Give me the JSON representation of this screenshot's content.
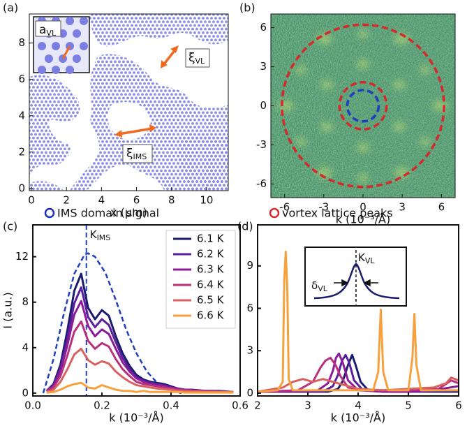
{
  "chart_data": [
    {
      "type": "image",
      "panel": "(a)",
      "xlabel": "x (μm)",
      "xlim": [
        -0.12,
        11.24
      ],
      "ylim": [
        -0.12,
        9.6
      ],
      "xticks": [
        0,
        2,
        4,
        6,
        8,
        10
      ],
      "yticks": [
        0,
        2,
        4,
        6,
        8
      ],
      "annotations": [
        {
          "text": "a",
          "sub": "VL"
        },
        {
          "text": "ξ",
          "sub": "VL"
        },
        {
          "text": "ξ",
          "sub": "IMS"
        }
      ]
    },
    {
      "type": "heatmap",
      "panel": "(b)",
      "xlabel": "k (10⁻³/Å)",
      "xlim": [
        -7.05,
        7.05
      ],
      "ylim": [
        -7.05,
        7.05
      ],
      "xticks": [
        -6,
        -3,
        0,
        3,
        6
      ],
      "yticks": [
        -6,
        -3,
        0,
        3,
        6
      ],
      "circles": [
        {
          "r": 6.2,
          "color": "#d42a2a"
        },
        {
          "r": 1.8,
          "color": "#d42a2a"
        },
        {
          "r": 1.2,
          "color": "#1f3fbf"
        }
      ]
    },
    {
      "type": "line",
      "panel": "(c)",
      "title": "IMS domain signal",
      "title_marker_color": "#1f2fbf",
      "xlabel": "k (10⁻³/Å)",
      "ylabel": "I (a.u.)",
      "xlim": [
        0,
        0.6
      ],
      "ylim": [
        -0.25,
        14.8
      ],
      "xticks": [
        {
          "value": 0,
          "label": "0.0"
        },
        0.2,
        0.4,
        0.6
      ],
      "yticks": [
        0,
        4,
        8,
        12
      ],
      "legend": "upper right",
      "x": [
        0.04,
        0.06,
        0.08,
        0.1,
        0.12,
        0.14,
        0.16,
        0.18,
        0.2,
        0.22,
        0.24,
        0.26,
        0.28,
        0.3,
        0.32,
        0.34,
        0.36,
        0.38,
        0.4,
        0.42,
        0.44,
        0.46,
        0.48,
        0.5,
        0.52,
        0.54,
        0.56,
        0.58
      ],
      "series": [
        {
          "name": "6.1 K",
          "color": "#1b1b6e",
          "values": [
            0.2,
            0.8,
            2.5,
            5.5,
            9.0,
            10.5,
            7.5,
            6.5,
            7.3,
            6.8,
            5.0,
            3.5,
            2.4,
            1.6,
            1.2,
            1.0,
            0.9,
            0.8,
            0.6,
            0.4,
            0.3,
            0.3,
            0.25,
            0.2,
            0.2,
            0.2,
            0.15,
            0.1
          ]
        },
        {
          "name": "6.2 K",
          "color": "#5a1f9e",
          "values": [
            0.2,
            0.7,
            2.2,
            4.8,
            7.9,
            9.3,
            6.7,
            5.8,
            6.5,
            6.0,
            4.5,
            3.1,
            2.1,
            1.4,
            1.1,
            0.9,
            0.8,
            0.7,
            0.5,
            0.4,
            0.3,
            0.3,
            0.2,
            0.2,
            0.2,
            0.15,
            0.1,
            0.1
          ]
        },
        {
          "name": "6.3 K",
          "color": "#8c1b9a",
          "values": [
            0.2,
            0.6,
            1.9,
            4.2,
            6.9,
            8.1,
            5.9,
            5.0,
            5.6,
            5.2,
            3.9,
            2.7,
            1.9,
            1.3,
            1.0,
            0.8,
            0.7,
            0.6,
            0.5,
            0.35,
            0.3,
            0.25,
            0.2,
            0.2,
            0.15,
            0.15,
            0.1,
            0.1
          ]
        },
        {
          "name": "6.4 K",
          "color": "#b9307f",
          "values": [
            0.15,
            0.5,
            1.5,
            3.3,
            5.4,
            6.3,
            4.6,
            3.9,
            4.4,
            4.1,
            3.0,
            2.1,
            1.5,
            1.0,
            0.8,
            0.7,
            0.6,
            0.5,
            0.4,
            0.3,
            0.25,
            0.2,
            0.2,
            0.15,
            0.15,
            0.1,
            0.1,
            0.1
          ]
        },
        {
          "name": "6.5 K",
          "color": "#da6060",
          "values": [
            0.1,
            0.3,
            1.0,
            2.1,
            3.4,
            3.9,
            2.9,
            2.5,
            2.8,
            2.6,
            1.9,
            1.4,
            1.0,
            0.7,
            0.6,
            0.5,
            0.4,
            0.35,
            0.3,
            0.2,
            0.2,
            0.15,
            0.15,
            0.1,
            0.1,
            0.1,
            0.1,
            0.1
          ]
        },
        {
          "name": "6.6 K",
          "color": "#f7a03e",
          "values": [
            0.05,
            0.1,
            0.3,
            0.6,
            0.8,
            0.9,
            0.5,
            0.4,
            0.7,
            0.5,
            0.3,
            0.2,
            0.2,
            0.1,
            0.2,
            0.1,
            0.1,
            0.1,
            0.1,
            0.1,
            0.05,
            0.05,
            0.05,
            0.05,
            0.05,
            0.05,
            0.05,
            0.05
          ]
        }
      ],
      "envelope": {
        "color": "#1f3fbf",
        "x": [
          0.03,
          0.06,
          0.09,
          0.12,
          0.15,
          0.16,
          0.18,
          0.21,
          0.24,
          0.27,
          0.3,
          0.33,
          0.36,
          0.39,
          0.43
        ],
        "values": [
          0,
          3.0,
          7.0,
          10.5,
          12.2,
          12.3,
          12.0,
          10.6,
          8.2,
          5.6,
          3.5,
          1.9,
          0.9,
          0.3,
          0
        ]
      },
      "marker_line": {
        "x": 0.155,
        "text": "K",
        "sub": "IMS"
      }
    },
    {
      "type": "line",
      "panel": "(d)",
      "title": "vortex lattice peaks",
      "title_marker_color": "#d42a2a",
      "xlabel": "k (10⁻³/Å)",
      "xlim": [
        2,
        6
      ],
      "ylim": [
        -0.2,
        11.9
      ],
      "xticks": [
        2,
        3,
        4,
        5,
        6
      ],
      "yticks": [
        0,
        3,
        6,
        9
      ],
      "series": [
        {
          "color": "#1b1b6e",
          "x": [
            2.0,
            3.4,
            3.6,
            3.7,
            3.8,
            3.88,
            3.95,
            4.05,
            4.2,
            4.5,
            5.0,
            5.5,
            6.0
          ],
          "values": [
            0.1,
            0.1,
            0.3,
            0.9,
            2.0,
            2.7,
            2.0,
            0.8,
            0.2,
            0.1,
            0.1,
            0.1,
            0.1
          ]
        },
        {
          "color": "#5a1f9e",
          "x": [
            2.0,
            3.3,
            3.5,
            3.6,
            3.68,
            3.75,
            3.82,
            3.92,
            4.1,
            4.5,
            5.0,
            5.5,
            6.0
          ],
          "values": [
            0.1,
            0.1,
            0.5,
            1.3,
            2.3,
            2.7,
            2.2,
            0.9,
            0.2,
            0.1,
            0.1,
            0.15,
            0.2
          ]
        },
        {
          "color": "#8c1b9a",
          "x": [
            2.0,
            3.2,
            3.4,
            3.5,
            3.56,
            3.62,
            3.7,
            3.8,
            4.0,
            4.5,
            5.0,
            5.5,
            6.0
          ],
          "values": [
            0.1,
            0.2,
            0.7,
            1.6,
            2.5,
            2.8,
            2.1,
            0.9,
            0.2,
            0.1,
            0.1,
            0.2,
            0.5
          ]
        },
        {
          "color": "#b9307f",
          "x": [
            2.0,
            2.8,
            3.1,
            3.25,
            3.35,
            3.45,
            3.55,
            3.65,
            3.8,
            4.2,
            5.0,
            5.6,
            5.85,
            6.0
          ],
          "values": [
            0.1,
            0.2,
            0.8,
            1.8,
            2.3,
            2.5,
            2.0,
            1.2,
            0.4,
            0.2,
            0.2,
            0.3,
            0.9,
            0.7
          ]
        },
        {
          "color": "#da6060",
          "x": [
            2.0,
            2.5,
            2.7,
            2.9,
            3.1,
            3.3,
            3.5,
            3.7,
            4.0,
            4.5,
            5.0,
            5.5,
            5.75,
            5.85,
            6.0
          ],
          "values": [
            0.1,
            0.4,
            0.8,
            1.0,
            0.8,
            1.0,
            0.8,
            0.6,
            0.3,
            0.2,
            0.3,
            0.4,
            0.7,
            1.1,
            0.9
          ]
        },
        {
          "color": "#f7a03e",
          "x": [
            2.0,
            2.4,
            2.5,
            2.53,
            2.56,
            2.59,
            2.62,
            2.7,
            3.0,
            4.3,
            4.4,
            4.45,
            4.5,
            4.6,
            5.0,
            5.08,
            5.12,
            5.16,
            5.25,
            6.0
          ],
          "values": [
            0.1,
            0.2,
            0.8,
            8.0,
            10.0,
            7.5,
            1.0,
            0.2,
            0.2,
            0.2,
            1.5,
            5.9,
            1.5,
            0.2,
            0.2,
            2.5,
            5.6,
            2.0,
            0.2,
            0.2
          ]
        }
      ],
      "inset": {
        "peak": {
          "text": "K",
          "sub": "VL"
        },
        "width": {
          "text": "δ",
          "sub": "VL"
        }
      }
    }
  ]
}
